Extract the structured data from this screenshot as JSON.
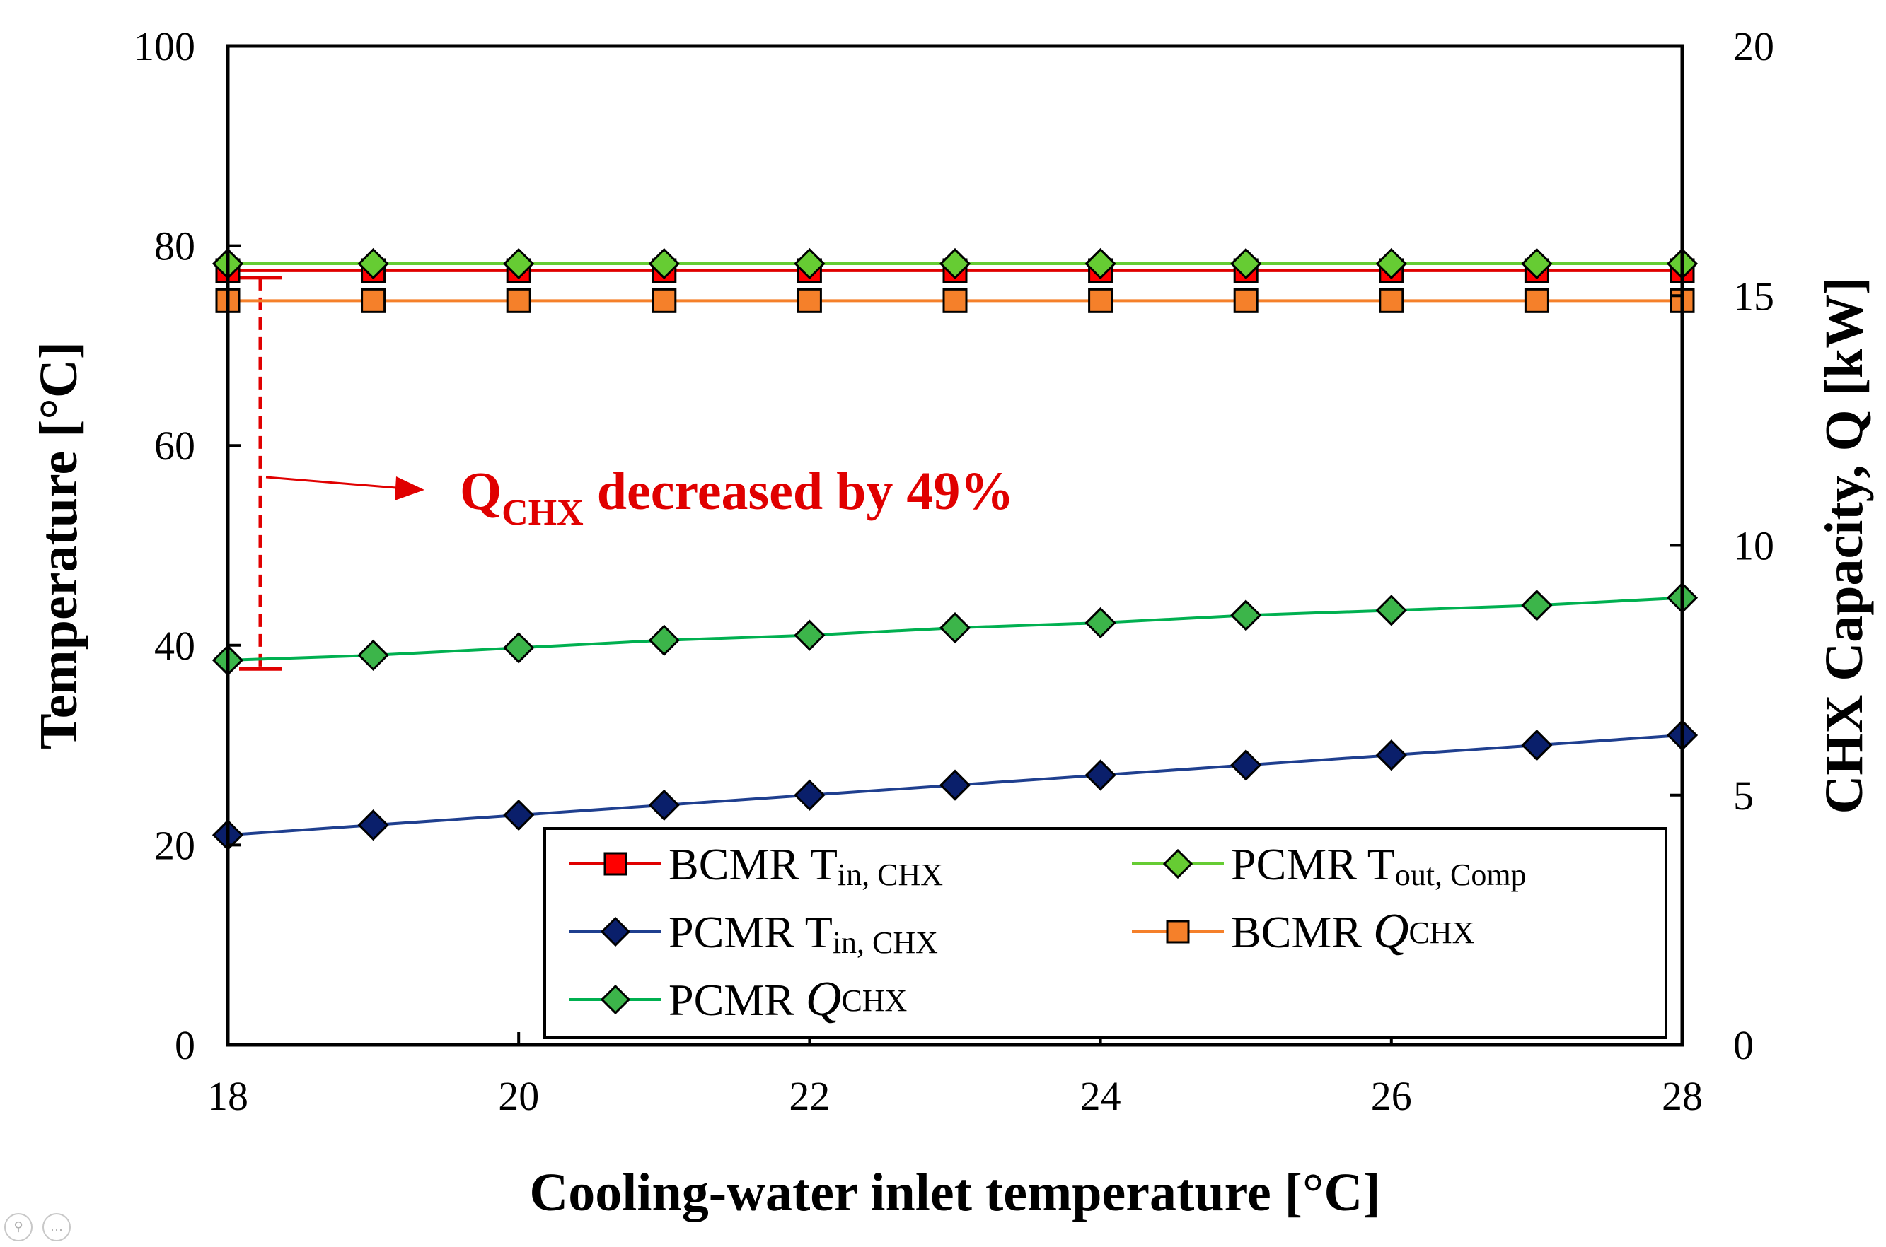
{
  "chart_data": {
    "type": "line",
    "xlabel": "Cooling-water inlet temperature [°C]",
    "ylabel_left": "Temperature [°C]",
    "ylabel_right": "CHX Capacity, Q [kW]",
    "xlim": [
      18,
      28
    ],
    "ylim_left": [
      0,
      100
    ],
    "ylim_right": [
      0,
      20
    ],
    "xticks": [
      "18",
      "20",
      "22",
      "24",
      "26",
      "28"
    ],
    "yticks_left": [
      "0",
      "20",
      "40",
      "60",
      "80",
      "100"
    ],
    "yticks_right": [
      "0",
      "5",
      "10",
      "15",
      "20"
    ],
    "x": [
      18,
      19,
      20,
      21,
      22,
      23,
      24,
      25,
      26,
      27,
      28
    ],
    "series": [
      {
        "name": "BCMR T in, CHX",
        "axis": "left",
        "color": "#ff0000",
        "line_color": "#e00000",
        "marker": "square",
        "values": [
          77.5,
          77.5,
          77.5,
          77.5,
          77.5,
          77.5,
          77.5,
          77.5,
          77.5,
          77.5,
          77.5
        ]
      },
      {
        "name": "PCMR T out, Comp",
        "axis": "left",
        "color": "#66cc33",
        "line_color": "#66cc33",
        "marker": "diamond",
        "values": [
          78.2,
          78.2,
          78.2,
          78.2,
          78.2,
          78.2,
          78.2,
          78.2,
          78.2,
          78.2,
          78.2
        ]
      },
      {
        "name": "PCMR T in, CHX",
        "axis": "left",
        "color": "#0a1f6b",
        "line_color": "#1f3f8f",
        "marker": "diamond",
        "values": [
          21.0,
          22.0,
          23.0,
          24.0,
          25.0,
          26.0,
          27.0,
          28.0,
          29.0,
          30.0,
          31.0
        ]
      },
      {
        "name": "BCMR Q CHX",
        "axis": "right",
        "color": "#f5802a",
        "line_color": "#f5802a",
        "marker": "square",
        "values": [
          14.9,
          14.9,
          14.9,
          14.9,
          14.9,
          14.9,
          14.9,
          14.9,
          14.9,
          14.9,
          14.9
        ]
      },
      {
        "name": "PCMR Q CHX",
        "axis": "right",
        "color": "#3cb54a",
        "line_color": "#00b050",
        "marker": "diamond",
        "values": [
          7.7,
          7.8,
          7.95,
          8.1,
          8.2,
          8.35,
          8.45,
          8.6,
          8.7,
          8.8,
          8.95
        ]
      }
    ],
    "legend": {
      "placement": "bottom-right",
      "entries": [
        {
          "series": 0,
          "main": "BCMR T",
          "sub": "in, CHX"
        },
        {
          "series": 1,
          "main": "PCMR T",
          "sub": "out, Comp"
        },
        {
          "series": 2,
          "main": "PCMR T",
          "sub": "in, CHX"
        },
        {
          "series": 3,
          "main": "BCMR ",
          "ital": "Q",
          "sub": "CHX"
        },
        {
          "series": 4,
          "main": "PCMR ",
          "ital": "Q",
          "sub": "CHX"
        }
      ]
    },
    "annotation": {
      "main": "Q",
      "sub": "CHX",
      "rest": " decreased by 49%",
      "color": "#e00000",
      "from_value": 77.5,
      "to_value": 38.2
    }
  },
  "ui": {
    "zoom_icon": "magnifier-icon",
    "more_icon": "ellipsis-icon",
    "more_glyph": "…"
  }
}
